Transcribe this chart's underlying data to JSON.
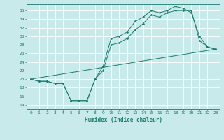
{
  "title": "",
  "xlabel": "Humidex (Indice chaleur)",
  "bg_color": "#c8eaea",
  "grid_color": "#ffffff",
  "line_color": "#1a7a6e",
  "xlim": [
    -0.5,
    23.5
  ],
  "ylim": [
    13,
    37.5
  ],
  "yticks": [
    14,
    16,
    18,
    20,
    22,
    24,
    26,
    28,
    30,
    32,
    34,
    36
  ],
  "xticks": [
    0,
    1,
    2,
    3,
    4,
    5,
    6,
    7,
    8,
    9,
    10,
    11,
    12,
    13,
    14,
    15,
    16,
    17,
    18,
    19,
    20,
    21,
    22,
    23
  ],
  "line1_x": [
    0,
    1,
    2,
    3,
    4,
    5,
    6,
    7,
    8,
    9,
    10,
    11,
    12,
    13,
    14,
    15,
    16,
    17,
    18,
    19,
    20,
    21,
    22,
    23
  ],
  "line1_y": [
    20,
    19.5,
    19.5,
    19,
    19,
    15,
    15,
    15,
    20,
    23,
    29.5,
    30,
    31,
    33.5,
    34.5,
    36,
    35.5,
    36,
    37,
    36.5,
    35.5,
    30,
    27.5,
    27
  ],
  "line2_x": [
    0,
    1,
    2,
    3,
    4,
    5,
    6,
    7,
    8,
    9,
    10,
    11,
    12,
    13,
    14,
    15,
    16,
    17,
    18,
    19,
    20,
    21,
    22,
    23
  ],
  "line2_y": [
    20,
    19.5,
    19.5,
    19,
    19,
    15,
    15,
    15,
    20,
    22,
    28,
    28.5,
    29.5,
    31.5,
    33,
    35,
    34.5,
    35.5,
    36,
    36,
    36,
    29,
    27.5,
    27
  ],
  "line3_x": [
    0,
    23
  ],
  "line3_y": [
    20,
    27
  ]
}
